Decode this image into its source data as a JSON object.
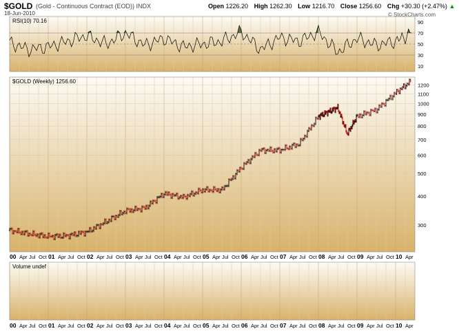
{
  "header": {
    "symbol": "$GOLD",
    "description": "(Gold - Continuous Contract (EOD)) INDX",
    "date": "18-Jun-2010",
    "open_label": "Open",
    "open": "1226.20",
    "high_label": "High",
    "high": "1262.30",
    "low_label": "Low",
    "low": "1216.70",
    "close_label": "Close",
    "close": "1256.60",
    "chg_label": "Chg",
    "chg": "+30.30 (+2.47%)",
    "chg_arrow": "▲",
    "credit": "© StockCharts.com"
  },
  "rsi_panel": {
    "label": "RSI(10) 70.16",
    "ticks": [
      90,
      70,
      50,
      30,
      10
    ]
  },
  "price_panel": {
    "label": "$GOLD (Weekly) 1256.60",
    "ticks": [
      1200,
      1100,
      1000,
      900,
      800,
      700,
      600,
      500,
      400,
      300
    ]
  },
  "volume_panel": {
    "label": "Volume undef"
  },
  "colors": {
    "up": "#000000",
    "down": "#cc0000",
    "rsi_fill": "#556b2f",
    "panel_top": "#fdfbf5",
    "panel_bottom": "#d8b26a"
  },
  "x_axis": {
    "labels": [
      "00",
      "Apr",
      "Jul",
      "Oct",
      "01",
      "Apr",
      "Jul",
      "Oct",
      "02",
      "Apr",
      "Jul",
      "Oct",
      "03",
      "Apr",
      "Jul",
      "Oct",
      "04",
      "Apr",
      "Jul",
      "Oct",
      "05",
      "Apr",
      "Jul",
      "Oct",
      "06",
      "Apr",
      "Jul",
      "Oct",
      "07",
      "Apr",
      "Jul",
      "Oct",
      "08",
      "Apr",
      "Jul",
      "Oct",
      "09",
      "Apr",
      "Jul",
      "Oct",
      "10",
      "Apr"
    ],
    "year_labels": [
      "00",
      "01",
      "02",
      "03",
      "04",
      "05",
      "06",
      "07",
      "08",
      "09",
      "10"
    ]
  },
  "chart_data": [
    {
      "type": "line",
      "title": "RSI(10) 70.16",
      "ylim": [
        0,
        100
      ],
      "reference_lines": [
        70,
        50,
        30
      ],
      "x": [
        "2000-01",
        "2000-07",
        "2001-01",
        "2001-07",
        "2002-01",
        "2002-07",
        "2003-01",
        "2003-07",
        "2004-01",
        "2004-07",
        "2005-01",
        "2005-07",
        "2006-01",
        "2006-07",
        "2007-01",
        "2007-07",
        "2008-01",
        "2008-07",
        "2009-01",
        "2009-07",
        "2010-01",
        "2010-06"
      ],
      "series": [
        {
          "values": [
            52,
            40,
            45,
            55,
            65,
            50,
            70,
            48,
            60,
            45,
            50,
            55,
            72,
            40,
            62,
            55,
            72,
            35,
            60,
            48,
            55,
            70
          ]
        }
      ]
    },
    {
      "type": "line",
      "title": "$GOLD (Weekly) 1256.60",
      "ylim": [
        230,
        1300
      ],
      "scale": "log",
      "x": [
        "2000-01",
        "2000-07",
        "2001-01",
        "2001-07",
        "2002-01",
        "2002-07",
        "2003-01",
        "2003-07",
        "2004-01",
        "2004-07",
        "2005-01",
        "2005-07",
        "2006-01",
        "2006-07",
        "2007-01",
        "2007-07",
        "2008-01",
        "2008-04",
        "2008-07",
        "2008-10",
        "2009-01",
        "2009-07",
        "2010-01",
        "2010-06"
      ],
      "series": [
        {
          "values": [
            285,
            275,
            268,
            270,
            280,
            310,
            345,
            355,
            410,
            395,
            425,
            425,
            530,
            630,
            630,
            670,
            880,
            920,
            960,
            740,
            880,
            940,
            1110,
            1256
          ]
        }
      ]
    }
  ]
}
